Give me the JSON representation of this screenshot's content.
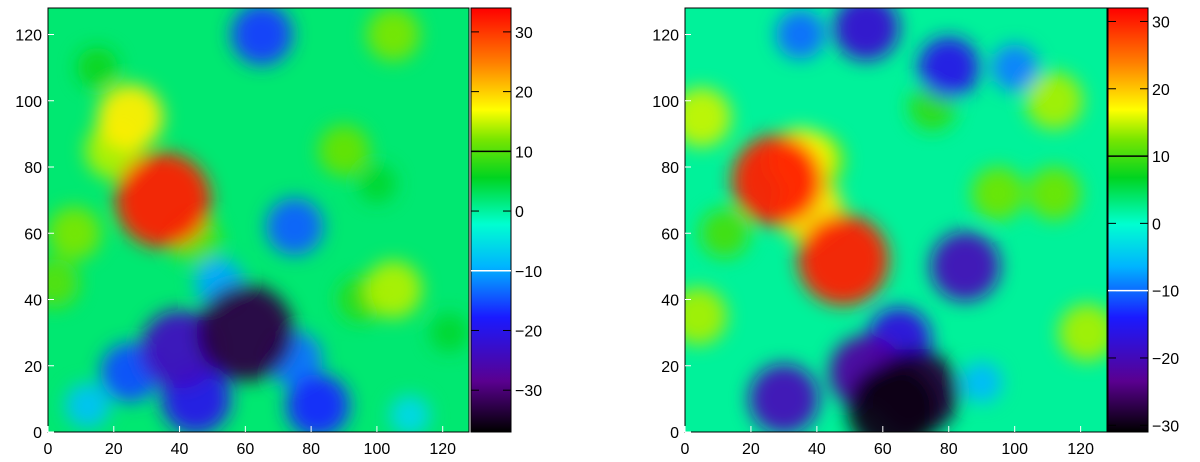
{
  "chart_data": [
    {
      "type": "heatmap",
      "title": "",
      "xlabel": "",
      "ylabel": "",
      "xlim": [
        0,
        128
      ],
      "ylim": [
        0,
        128
      ],
      "x_ticks": [
        "0",
        "20",
        "40",
        "60",
        "80",
        "100",
        "120"
      ],
      "y_ticks": [
        "0",
        "20",
        "40",
        "60",
        "80",
        "100",
        "120"
      ],
      "colorbar": {
        "range": [
          -37,
          34
        ],
        "ticks": [
          "30",
          "20",
          "10",
          "0",
          "−10",
          "−20",
          "−30"
        ]
      },
      "contour_levels": {
        "white": -10,
        "black": 10
      },
      "features": [
        {
          "x": 35,
          "y": 70,
          "value": 32
        },
        {
          "x": 25,
          "y": 95,
          "value": 18
        },
        {
          "x": 20,
          "y": 85,
          "value": 14
        },
        {
          "x": 45,
          "y": 58,
          "value": 10
        },
        {
          "x": 8,
          "y": 60,
          "value": 12
        },
        {
          "x": 15,
          "y": 110,
          "value": 6
        },
        {
          "x": 105,
          "y": 43,
          "value": 14
        },
        {
          "x": 95,
          "y": 40,
          "value": 8
        },
        {
          "x": 105,
          "y": 120,
          "value": 12
        },
        {
          "x": 90,
          "y": 85,
          "value": 11
        },
        {
          "x": 100,
          "y": 75,
          "value": 5
        },
        {
          "x": 2,
          "y": 45,
          "value": 10
        },
        {
          "x": 122,
          "y": 30,
          "value": 5
        },
        {
          "x": 60,
          "y": 30,
          "value": -33
        },
        {
          "x": 40,
          "y": 25,
          "value": -24
        },
        {
          "x": 25,
          "y": 18,
          "value": -15
        },
        {
          "x": 45,
          "y": 10,
          "value": -20
        },
        {
          "x": 75,
          "y": 22,
          "value": -13
        },
        {
          "x": 82,
          "y": 8,
          "value": -17
        },
        {
          "x": 52,
          "y": 45,
          "value": -10
        },
        {
          "x": 75,
          "y": 62,
          "value": -14
        },
        {
          "x": 65,
          "y": 120,
          "value": -16
        },
        {
          "x": 12,
          "y": 8,
          "value": -8
        },
        {
          "x": 110,
          "y": 5,
          "value": -6
        }
      ]
    },
    {
      "type": "heatmap",
      "title": "",
      "xlabel": "",
      "ylabel": "",
      "xlim": [
        0,
        128
      ],
      "ylim": [
        0,
        128
      ],
      "x_ticks": [
        "0",
        "20",
        "40",
        "60",
        "80",
        "100",
        "120"
      ],
      "y_ticks": [
        "0",
        "20",
        "40",
        "60",
        "80",
        "100",
        "120"
      ],
      "colorbar": {
        "range": [
          -31,
          32
        ],
        "ticks": [
          "30",
          "20",
          "10",
          "0",
          "−10",
          "−20",
          "−30"
        ]
      },
      "contour_levels": {
        "white": -10,
        "black": 10
      },
      "features": [
        {
          "x": 28,
          "y": 76,
          "value": 30
        },
        {
          "x": 48,
          "y": 52,
          "value": 30
        },
        {
          "x": 38,
          "y": 67,
          "value": 18
        },
        {
          "x": 35,
          "y": 82,
          "value": 17
        },
        {
          "x": 40,
          "y": 82,
          "value": 13
        },
        {
          "x": 12,
          "y": 60,
          "value": 10
        },
        {
          "x": 5,
          "y": 95,
          "value": 15
        },
        {
          "x": 4,
          "y": 35,
          "value": 14
        },
        {
          "x": 112,
          "y": 100,
          "value": 14
        },
        {
          "x": 95,
          "y": 72,
          "value": 12
        },
        {
          "x": 112,
          "y": 72,
          "value": 12
        },
        {
          "x": 122,
          "y": 30,
          "value": 14
        },
        {
          "x": 75,
          "y": 98,
          "value": 9
        },
        {
          "x": 70,
          "y": 12,
          "value": -28
        },
        {
          "x": 63,
          "y": 7,
          "value": -30
        },
        {
          "x": 55,
          "y": 18,
          "value": -22
        },
        {
          "x": 30,
          "y": 10,
          "value": -20
        },
        {
          "x": 65,
          "y": 28,
          "value": -17
        },
        {
          "x": 85,
          "y": 50,
          "value": -20
        },
        {
          "x": 55,
          "y": 122,
          "value": -18
        },
        {
          "x": 80,
          "y": 110,
          "value": -16
        },
        {
          "x": 35,
          "y": 120,
          "value": -10
        },
        {
          "x": 100,
          "y": 110,
          "value": -9
        },
        {
          "x": 90,
          "y": 15,
          "value": -6
        }
      ]
    }
  ]
}
